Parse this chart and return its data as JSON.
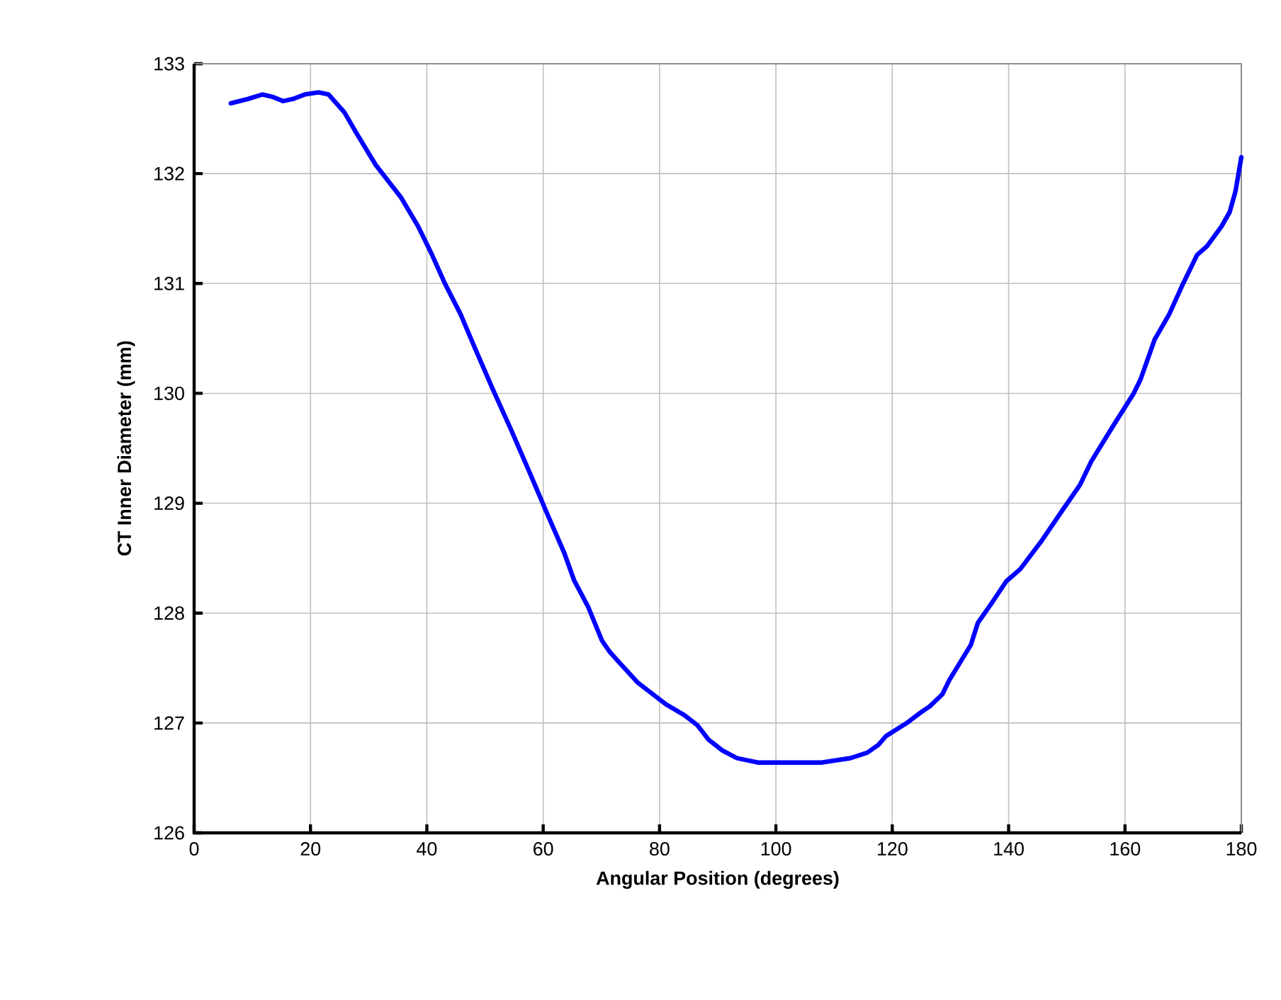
{
  "chart_data": {
    "type": "line",
    "xlabel": "Angular Position (degrees)",
    "ylabel": "CT Inner Diameter  (mm)",
    "xlim": [
      0,
      180
    ],
    "xticks": [
      0,
      20,
      40,
      60,
      80,
      100,
      120,
      140,
      160,
      180
    ],
    "ylim": [
      126,
      133
    ],
    "yticks": [
      126,
      127,
      128,
      129,
      130,
      131,
      132,
      133
    ],
    "grid": true,
    "marker": "none",
    "line_style": "solid",
    "series": [
      {
        "color": "#0000ff",
        "x": [
          6.3,
          9.3,
          11.7,
          13.4,
          15.3,
          17,
          19,
          21.4,
          23.1,
          25.8,
          28,
          31.2,
          35.6,
          38.5,
          40.9,
          43.1,
          45.8,
          48.2,
          51.4,
          54.3,
          57.5,
          60.4,
          63.6,
          65.3,
          67.7,
          70.1,
          71.4,
          73.1,
          76.2,
          81.1,
          84.3,
          86.5,
          88.4,
          90.8,
          93.3,
          96.9,
          103,
          107.9,
          112.8,
          115.7,
          117.6,
          118.9,
          122.5,
          125,
          126.4,
          128.6,
          129.8,
          133.5,
          134.7,
          137.2,
          139.6,
          142,
          145.7,
          149.3,
          152.3,
          154.2,
          157.8,
          161.5,
          162.7,
          165.1,
          167.6,
          170,
          172.4,
          174.1,
          176.6,
          178,
          179,
          180
        ],
        "values": [
          132.64,
          132.68,
          132.72,
          132.7,
          132.66,
          132.68,
          132.72,
          132.74,
          132.72,
          132.56,
          132.36,
          132.08,
          131.78,
          131.52,
          131.26,
          131.0,
          130.72,
          130.42,
          130.03,
          129.69,
          129.3,
          128.94,
          128.55,
          128.3,
          128.06,
          127.75,
          127.65,
          127.55,
          127.37,
          127.17,
          127.07,
          126.98,
          126.85,
          126.75,
          126.68,
          126.64,
          126.64,
          126.64,
          126.68,
          126.73,
          126.8,
          126.88,
          127.0,
          127.1,
          127.15,
          127.26,
          127.39,
          127.71,
          127.91,
          128.1,
          128.29,
          128.4,
          128.66,
          128.94,
          129.17,
          129.38,
          129.69,
          130.0,
          130.13,
          130.49,
          130.72,
          131.0,
          131.26,
          131.34,
          131.52,
          131.65,
          131.84,
          132.15
        ]
      }
    ]
  }
}
